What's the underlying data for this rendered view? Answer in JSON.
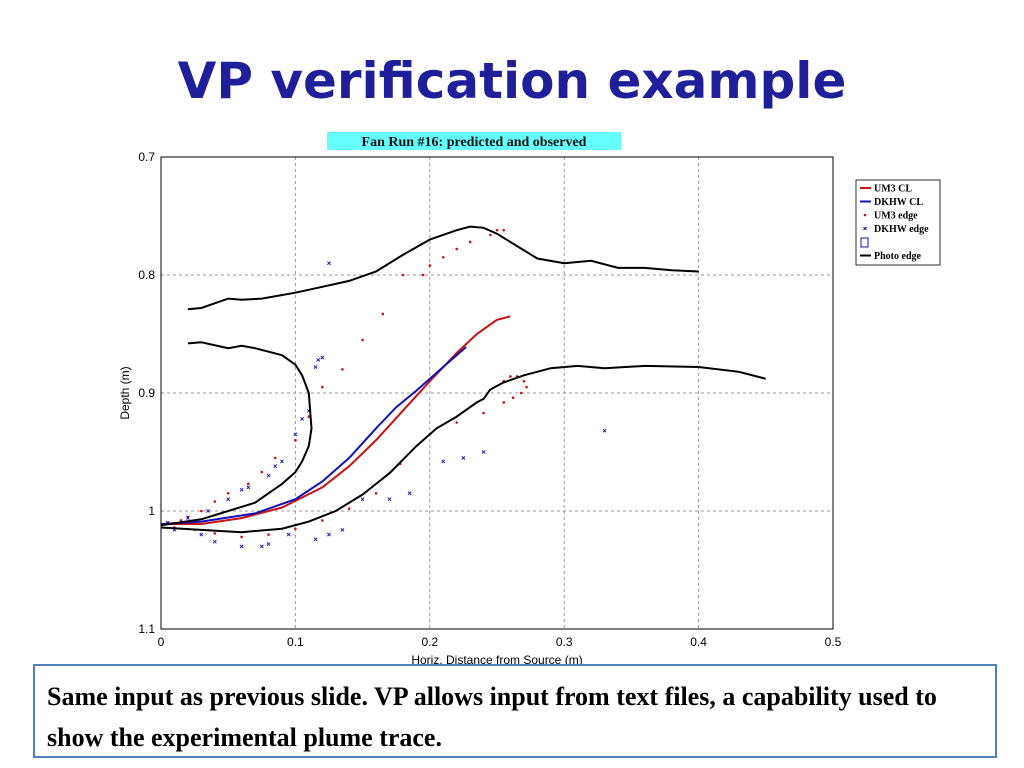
{
  "slide": {
    "title": "VP verification example",
    "caption": "Same input as previous slide. VP allows input from text files, a capability used to show the experimental plume trace."
  },
  "colors": {
    "title": "#1f1f99",
    "um3": "#cc1111",
    "dkhw": "#1111bb",
    "photo": "#000000",
    "chart_title_bg": "#66ffff",
    "caption_border": "#4f81bd"
  },
  "chart_data": {
    "type": "line",
    "title": "Fan Run #16: predicted and observed",
    "xlabel": "Horiz. Distance from Source (m)",
    "ylabel": "Depth (m)",
    "xlim": [
      0,
      0.5
    ],
    "ylim": [
      0.7,
      1.1
    ],
    "y_inverted": true,
    "grid": true,
    "legend_position": "top-right",
    "xticks": [
      "0",
      "0.1",
      "0.2",
      "0.3",
      "0.4",
      "0.5"
    ],
    "yticks": [
      "0.7",
      "0.8",
      "0.9",
      "1",
      "1.1"
    ],
    "legend": [
      "UM3 CL",
      "DKHW CL",
      "UM3 edge",
      "DKHW edge",
      "",
      "Photo edge"
    ],
    "series": [
      {
        "name": "UM3 CL",
        "style": "line",
        "color": "#cc1111",
        "x": [
          0,
          0.03,
          0.06,
          0.09,
          0.12,
          0.14,
          0.16,
          0.18,
          0.2,
          0.22,
          0.235,
          0.25,
          0.26
        ],
        "y": [
          1.011,
          1.011,
          1.006,
          0.997,
          0.98,
          0.962,
          0.94,
          0.915,
          0.89,
          0.866,
          0.85,
          0.838,
          0.835
        ]
      },
      {
        "name": "DKHW CL",
        "style": "line",
        "color": "#1111bb",
        "x": [
          0,
          0.03,
          0.07,
          0.1,
          0.12,
          0.14,
          0.16,
          0.175,
          0.19,
          0.21,
          0.227
        ],
        "y": [
          1.011,
          1.009,
          1.002,
          0.99,
          0.975,
          0.955,
          0.93,
          0.912,
          0.898,
          0.878,
          0.861
        ]
      },
      {
        "name": "UM3 edge",
        "style": "dots",
        "color": "#cc1111",
        "x": [
          0.005,
          0.015,
          0.02,
          0.03,
          0.04,
          0.05,
          0.065,
          0.075,
          0.085,
          0.1,
          0.11,
          0.12,
          0.135,
          0.15,
          0.165,
          0.18,
          0.195,
          0.2,
          0.21,
          0.22,
          0.23,
          0.245,
          0.25,
          0.255,
          0.01,
          0.025,
          0.04,
          0.06,
          0.08,
          0.1,
          0.12,
          0.14,
          0.16,
          0.178,
          0.2,
          0.22,
          0.24,
          0.255,
          0.262,
          0.268,
          0.272,
          0.27,
          0.265,
          0.26,
          0.255
        ],
        "y": [
          1.01,
          1.008,
          1.005,
          1.0,
          0.992,
          0.985,
          0.977,
          0.967,
          0.955,
          0.94,
          0.92,
          0.895,
          0.88,
          0.855,
          0.833,
          0.8,
          0.8,
          0.792,
          0.785,
          0.778,
          0.772,
          0.766,
          0.762,
          0.762,
          1.014,
          1.016,
          1.019,
          1.022,
          1.02,
          1.015,
          1.008,
          0.998,
          0.985,
          0.96,
          0.935,
          0.925,
          0.917,
          0.908,
          0.904,
          0.9,
          0.895,
          0.89,
          0.886,
          0.886,
          0.89
        ]
      },
      {
        "name": "DKHW edge",
        "style": "cross",
        "color": "#1111bb",
        "x": [
          0.005,
          0.02,
          0.035,
          0.05,
          0.06,
          0.065,
          0.08,
          0.085,
          0.09,
          0.1,
          0.105,
          0.11,
          0.115,
          0.117,
          0.12,
          0.125,
          0.01,
          0.03,
          0.04,
          0.06,
          0.075,
          0.08,
          0.095,
          0.115,
          0.125,
          0.135,
          0.15,
          0.17,
          0.185,
          0.21,
          0.225,
          0.24,
          0.33
        ],
        "y": [
          1.01,
          1.006,
          1.0,
          0.99,
          0.982,
          0.98,
          0.97,
          0.962,
          0.958,
          0.935,
          0.922,
          0.915,
          0.878,
          0.872,
          0.87,
          0.79,
          1.016,
          1.02,
          1.026,
          1.03,
          1.03,
          1.028,
          1.02,
          1.024,
          1.02,
          1.016,
          0.99,
          0.99,
          0.985,
          0.958,
          0.955,
          0.95,
          0.932
        ]
      },
      {
        "name": "Photo edge upper",
        "style": "line",
        "color": "#000000",
        "x": [
          0.02,
          0.03,
          0.05,
          0.06,
          0.075,
          0.1,
          0.12,
          0.14,
          0.16,
          0.18,
          0.2,
          0.22,
          0.23,
          0.24,
          0.25,
          0.26,
          0.28,
          0.3,
          0.32,
          0.34,
          0.36,
          0.38,
          0.4
        ],
        "y": [
          0.829,
          0.828,
          0.82,
          0.821,
          0.82,
          0.815,
          0.81,
          0.805,
          0.797,
          0.783,
          0.77,
          0.762,
          0.759,
          0.76,
          0.765,
          0.772,
          0.786,
          0.79,
          0.788,
          0.794,
          0.794,
          0.796,
          0.797
        ]
      },
      {
        "name": "Photo edge upper",
        "style": "line",
        "color": "#000000",
        "x": [
          0.02,
          0.03,
          0.05,
          0.06,
          0.07,
          0.09,
          0.1,
          0.105,
          0.11,
          0.112,
          0.11,
          0.105,
          0.1,
          0.09,
          0.08,
          0.07,
          0.05,
          0.03,
          0.0
        ],
        "y": [
          0.858,
          0.857,
          0.862,
          0.86,
          0.862,
          0.868,
          0.876,
          0.885,
          0.9,
          0.93,
          0.945,
          0.958,
          0.967,
          0.977,
          0.985,
          0.993,
          1.0,
          1.007,
          1.012
        ]
      },
      {
        "name": "Photo edge lower",
        "style": "line",
        "color": "#000000",
        "x": [
          0.0,
          0.03,
          0.06,
          0.09,
          0.11,
          0.13,
          0.15,
          0.17,
          0.19,
          0.205,
          0.22,
          0.235,
          0.24,
          0.245,
          0.255,
          0.27,
          0.29,
          0.31,
          0.33,
          0.36,
          0.4,
          0.43,
          0.45
        ],
        "y": [
          1.014,
          1.016,
          1.018,
          1.015,
          1.009,
          1.0,
          0.986,
          0.968,
          0.945,
          0.93,
          0.92,
          0.908,
          0.905,
          0.897,
          0.891,
          0.885,
          0.879,
          0.877,
          0.879,
          0.877,
          0.878,
          0.882,
          0.888
        ]
      }
    ]
  }
}
